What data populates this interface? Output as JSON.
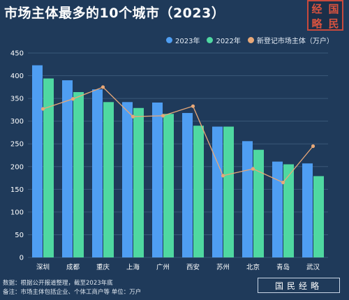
{
  "title": "市场主体最多的10个城市（2023）",
  "logo": {
    "text": "经国略民",
    "color": "#c94a3d"
  },
  "legend": {
    "items": [
      {
        "label": "2023年",
        "color": "#4f9ef2",
        "shape": "dot"
      },
      {
        "label": "2022年",
        "color": "#4fd8a1",
        "shape": "dot"
      },
      {
        "label": "新登记市场主体（万户）",
        "color": "#e8a878",
        "shape": "dot"
      }
    ]
  },
  "chart_data": {
    "type": "bar",
    "categories": [
      "深圳",
      "成都",
      "重庆",
      "上海",
      "广州",
      "西安",
      "苏州",
      "北京",
      "青岛",
      "武汉"
    ],
    "series": [
      {
        "name": "2023年",
        "type": "bar",
        "color": "#4f9ef2",
        "values": [
          423,
          390,
          370,
          342,
          341,
          318,
          288,
          256,
          211,
          207
        ]
      },
      {
        "name": "2022年",
        "type": "bar",
        "color": "#4fd8a1",
        "values": [
          394,
          364,
          342,
          329,
          316,
          290,
          288,
          237,
          205,
          179
        ]
      },
      {
        "name": "新登记市场主体（万户）",
        "type": "line",
        "color": "#e8a878",
        "values": [
          327,
          349,
          375,
          310,
          312,
          333,
          180,
          195,
          165,
          245
        ]
      }
    ],
    "y_ticks": [
      0,
      50,
      100,
      150,
      200,
      250,
      300,
      350,
      400,
      450
    ],
    "ylim": [
      0,
      450
    ],
    "grid": true,
    "legend_position": "top-right"
  },
  "footer": {
    "source": "数据：根据公开报道整理，截至2023年底",
    "note": "备注：市场主体包括企业、个体工商户等  单位：万户",
    "brand": "国民经略"
  },
  "colors": {
    "background": "#1f3a5a",
    "grid": "#3a5878"
  }
}
